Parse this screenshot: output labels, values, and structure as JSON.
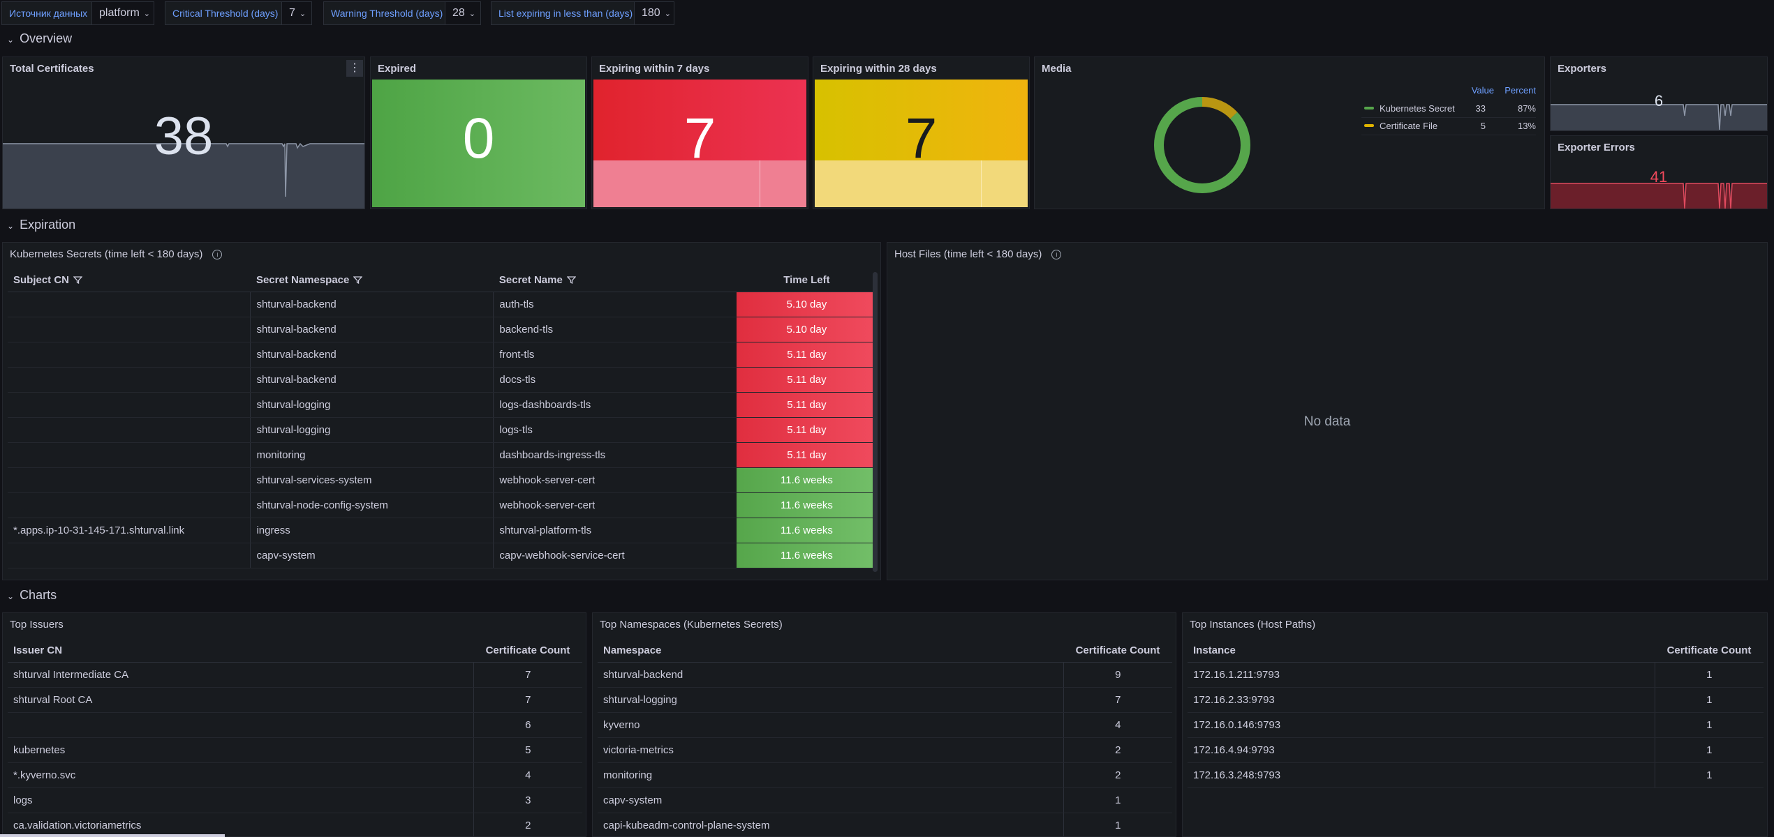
{
  "variables": [
    {
      "label": "Источник данных",
      "value": "platform"
    },
    {
      "label": "Critical Threshold (days)",
      "value": "7"
    },
    {
      "label": "Warning Threshold (days)",
      "value": "28"
    },
    {
      "label": "List expiring in less than (days)",
      "value": "180"
    }
  ],
  "rows": {
    "overview": "Overview",
    "expiration": "Expiration",
    "charts": "Charts"
  },
  "stats": {
    "total": {
      "title": "Total Certificates",
      "value": "38"
    },
    "expired": {
      "title": "Expired",
      "value": "0"
    },
    "exp7": {
      "title": "Expiring within 7 days",
      "value": "7"
    },
    "exp28": {
      "title": "Expiring within 28 days",
      "value": "7"
    },
    "exporters": {
      "title": "Exporters",
      "value": "6"
    },
    "exporter_errors": {
      "title": "Exporter Errors",
      "value": "41"
    }
  },
  "media": {
    "title": "Media",
    "legend_headers": {
      "value": "Value",
      "percent": "Percent"
    },
    "items": [
      {
        "name": "Kubernetes Secret",
        "value": "33",
        "percent": "87%",
        "color": "#56a64b",
        "fraction": 0.87
      },
      {
        "name": "Certificate File",
        "value": "5",
        "percent": "13%",
        "color": "#b99612",
        "fraction": 0.13
      }
    ]
  },
  "k8s_table": {
    "title": "Kubernetes Secrets (time left < 180 days)",
    "headers": [
      "Subject CN",
      "Secret Namespace",
      "Secret Name",
      "Time Left"
    ],
    "rows": [
      [
        "",
        "shturval-backend",
        "auth-tls",
        "5.10 day",
        "red"
      ],
      [
        "",
        "shturval-backend",
        "backend-tls",
        "5.10 day",
        "red"
      ],
      [
        "",
        "shturval-backend",
        "front-tls",
        "5.11 day",
        "red"
      ],
      [
        "",
        "shturval-backend",
        "docs-tls",
        "5.11 day",
        "red"
      ],
      [
        "",
        "shturval-logging",
        "logs-dashboards-tls",
        "5.11 day",
        "red"
      ],
      [
        "",
        "shturval-logging",
        "logs-tls",
        "5.11 day",
        "red"
      ],
      [
        "",
        "monitoring",
        "dashboards-ingress-tls",
        "5.11 day",
        "red"
      ],
      [
        "",
        "shturval-services-system",
        "webhook-server-cert",
        "11.6 weeks",
        "green"
      ],
      [
        "",
        "shturval-node-config-system",
        "webhook-server-cert",
        "11.6 weeks",
        "green"
      ],
      [
        "*.apps.ip-10-31-145-171.shturval.link",
        "ingress",
        "shturval-platform-tls",
        "11.6 weeks",
        "green"
      ],
      [
        "",
        "capv-system",
        "capv-webhook-service-cert",
        "11.6 weeks",
        "green"
      ]
    ]
  },
  "host_files": {
    "title": "Host Files (time left < 180 days)",
    "empty": "No data"
  },
  "top_issuers": {
    "title": "Top Issuers",
    "headers": [
      "Issuer CN",
      "Certificate Count"
    ],
    "rows": [
      [
        "shturval Intermediate CA",
        "7"
      ],
      [
        "shturval Root CA",
        "7"
      ],
      [
        "",
        "6"
      ],
      [
        "kubernetes",
        "5"
      ],
      [
        "*.kyverno.svc",
        "4"
      ],
      [
        "logs",
        "3"
      ],
      [
        "ca.validation.victoriametrics",
        "2"
      ]
    ]
  },
  "top_namespaces": {
    "title": "Top Namespaces (Kubernetes Secrets)",
    "headers": [
      "Namespace",
      "Certificate Count"
    ],
    "rows": [
      [
        "shturval-backend",
        "9"
      ],
      [
        "shturval-logging",
        "7"
      ],
      [
        "kyverno",
        "4"
      ],
      [
        "victoria-metrics",
        "2"
      ],
      [
        "monitoring",
        "2"
      ],
      [
        "capv-system",
        "1"
      ],
      [
        "capi-kubeadm-control-plane-system",
        "1"
      ]
    ]
  },
  "top_instances": {
    "title": "Top Instances (Host Paths)",
    "headers": [
      "Instance",
      "Certificate Count"
    ],
    "rows": [
      [
        "172.16.1.211:9793",
        "1"
      ],
      [
        "172.16.2.33:9793",
        "1"
      ],
      [
        "172.16.0.146:9793",
        "1"
      ],
      [
        "172.16.4.94:9793",
        "1"
      ],
      [
        "172.16.3.248:9793",
        "1"
      ]
    ]
  }
}
